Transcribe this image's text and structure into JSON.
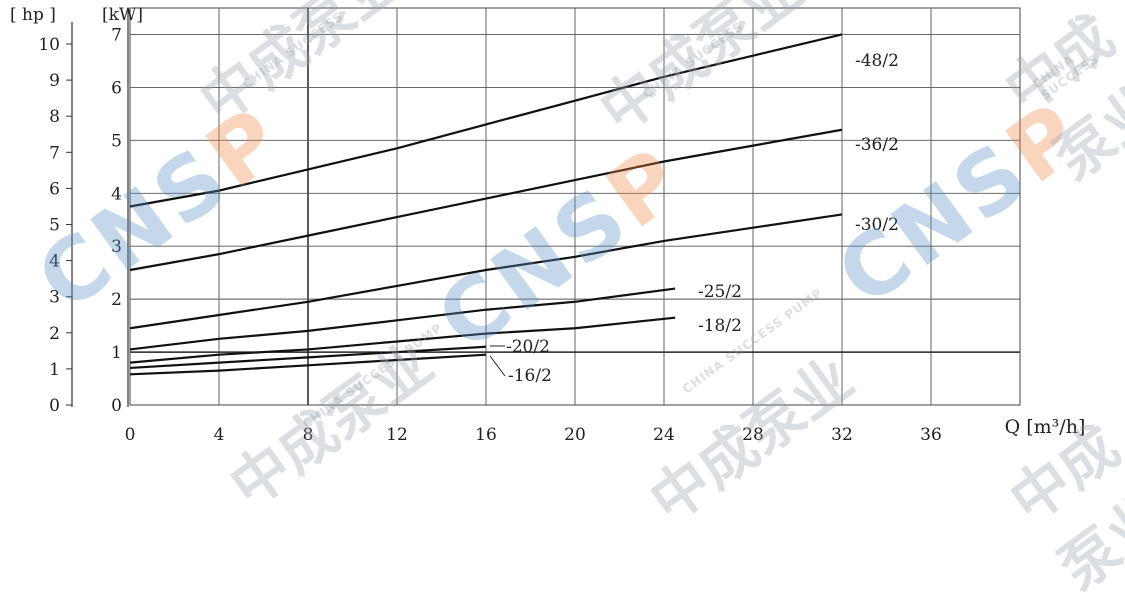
{
  "chart_data": {
    "type": "line",
    "title": "",
    "y_axis_hp": {
      "label": "[ hp ]",
      "ticks": [
        "0",
        "1",
        "2",
        "3",
        "4",
        "5",
        "6",
        "7",
        "8",
        "9",
        "10"
      ],
      "range": [
        0,
        10
      ]
    },
    "y_axis_kw": {
      "label": "[kW]",
      "ticks": [
        "0",
        "1",
        "2",
        "3",
        "4",
        "5",
        "6",
        "7"
      ],
      "range": [
        0,
        7.5
      ]
    },
    "x_axis": {
      "label": "Q [m³/h]",
      "ticks": [
        "0",
        "4",
        "8",
        "12",
        "16",
        "20",
        "24",
        "28",
        "32",
        "36"
      ],
      "range": [
        0,
        40
      ]
    },
    "grid": true,
    "series": [
      {
        "name": "-48/2",
        "x": [
          0,
          4,
          8,
          12,
          16,
          20,
          24,
          28,
          32
        ],
        "y": [
          3.75,
          4.05,
          4.45,
          4.85,
          5.3,
          5.75,
          6.2,
          6.6,
          7.0
        ]
      },
      {
        "name": "-36/2",
        "x": [
          0,
          4,
          8,
          12,
          16,
          20,
          24,
          28,
          32
        ],
        "y": [
          2.55,
          2.85,
          3.2,
          3.55,
          3.9,
          4.25,
          4.6,
          4.9,
          5.2
        ]
      },
      {
        "name": "-30/2",
        "x": [
          0,
          4,
          8,
          12,
          16,
          20,
          24,
          28,
          32
        ],
        "y": [
          1.45,
          1.7,
          1.95,
          2.25,
          2.55,
          2.8,
          3.1,
          3.35,
          3.6
        ]
      },
      {
        "name": "-25/2",
        "x": [
          0,
          4,
          8,
          12,
          16,
          20,
          24.5
        ],
        "y": [
          1.05,
          1.25,
          1.4,
          1.6,
          1.8,
          1.95,
          2.2
        ]
      },
      {
        "name": "-18/2",
        "x": [
          0,
          4,
          8,
          12,
          16,
          20,
          24.5
        ],
        "y": [
          0.8,
          0.95,
          1.05,
          1.2,
          1.35,
          1.45,
          1.65
        ]
      },
      {
        "name": "-20/2",
        "x": [
          0,
          4,
          8,
          12,
          16
        ],
        "y": [
          0.7,
          0.8,
          0.9,
          1.0,
          1.1
        ]
      },
      {
        "name": "-16/2",
        "x": [
          0,
          4,
          8,
          12,
          16
        ],
        "y": [
          0.58,
          0.65,
          0.75,
          0.85,
          0.95
        ]
      }
    ]
  },
  "watermark": {
    "cnsp_blue": "CNS",
    "cnsp_orange": "P",
    "chinese": "中成泵业",
    "english": "CHINA SUCCESS PUMP",
    "english_alt": "CHINA SUCCESS",
    "brand_blue": "#5b8fc7",
    "brand_orange": "#f08a4b"
  }
}
